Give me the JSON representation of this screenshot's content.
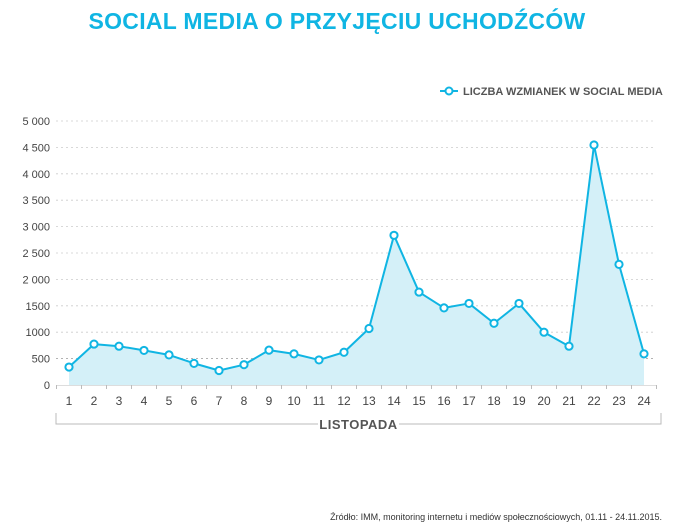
{
  "chart_data": {
    "type": "line",
    "title": "SOCIAL MEDIA O PRZYJĘCIU UCHODŹCÓW",
    "xlabel": "LISTOPADA",
    "ylabel": "",
    "ylim": [
      0,
      5000
    ],
    "yticks": [
      0,
      500,
      1000,
      1500,
      2000,
      2500,
      3000,
      3500,
      4000,
      4500,
      5000
    ],
    "ytick_labels": [
      "0",
      "500",
      "1000",
      "1500",
      "2 000",
      "2 500",
      "3 000",
      "3 500",
      "4 000",
      "4 500",
      "5 000"
    ],
    "categories": [
      "1",
      "2",
      "3",
      "4",
      "5",
      "6",
      "7",
      "8",
      "9",
      "10",
      "11",
      "12",
      "13",
      "14",
      "15",
      "16",
      "17",
      "18",
      "19",
      "20",
      "21",
      "22",
      "23",
      "24"
    ],
    "series": [
      {
        "name": "LICZBA WZMIANEK W SOCIAL MEDIA",
        "color": "#10b5e3",
        "fill": "#d4f0f8",
        "values": [
          340,
          775,
          735,
          655,
          570,
          410,
          275,
          385,
          660,
          590,
          475,
          620,
          1070,
          2835,
          1760,
          1460,
          1545,
          1170,
          1545,
          1000,
          735,
          4545,
          2285,
          590
        ]
      }
    ],
    "legend": "top-right",
    "grid": true
  },
  "source": "Źródło: IMM, monitoring internetu i mediów społecznościowych, 01.11 - 24.11.2015."
}
